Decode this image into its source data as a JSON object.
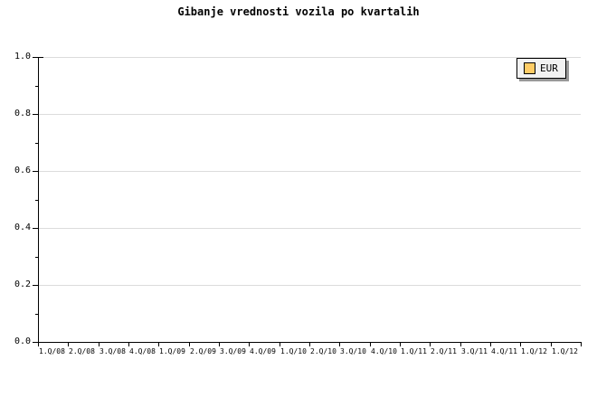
{
  "title": "Gibanje vrednosti vozila po kvartalih",
  "legend": {
    "label": "EUR",
    "swatch_color": "#ffcc66"
  },
  "colors": {
    "background": "#ffffff",
    "axis": "#000000",
    "grid": "#dcdcdc",
    "text": "#000000",
    "legend_background": "#f2f2f2",
    "legend_shadow": "#999999",
    "legend_swatch": "#ffcc66"
  },
  "chart_data": {
    "type": "line",
    "title": "Gibanje vrednosti vozila po kvartalih",
    "categories": [
      "1.Q/08",
      "2.Q/08",
      "3.Q/08",
      "4.Q/08",
      "1.Q/09",
      "2.Q/09",
      "3.Q/09",
      "4.Q/09",
      "1.Q/10",
      "2.Q/10",
      "3.Q/10",
      "4.Q/10",
      "1.Q/11",
      "2.Q/11",
      "3.Q/11",
      "4.Q/11",
      "1.Q/12",
      "1.Q/12"
    ],
    "series": [
      {
        "name": "EUR",
        "color": "#ffcc66",
        "values": []
      }
    ],
    "xlabel": "",
    "ylabel": "",
    "ylim": [
      0,
      1.0
    ],
    "y_major_ticks": [
      0,
      0.2,
      0.4,
      0.6,
      0.8,
      1.0
    ],
    "y_tick_labels": [
      "0.0",
      "0.2",
      "0.4",
      "0.6",
      "0.8",
      "1.0"
    ],
    "y_minor_step": 0.1,
    "grid": "horizontal-major",
    "legend_position": "top-right",
    "plot_empty": true
  }
}
